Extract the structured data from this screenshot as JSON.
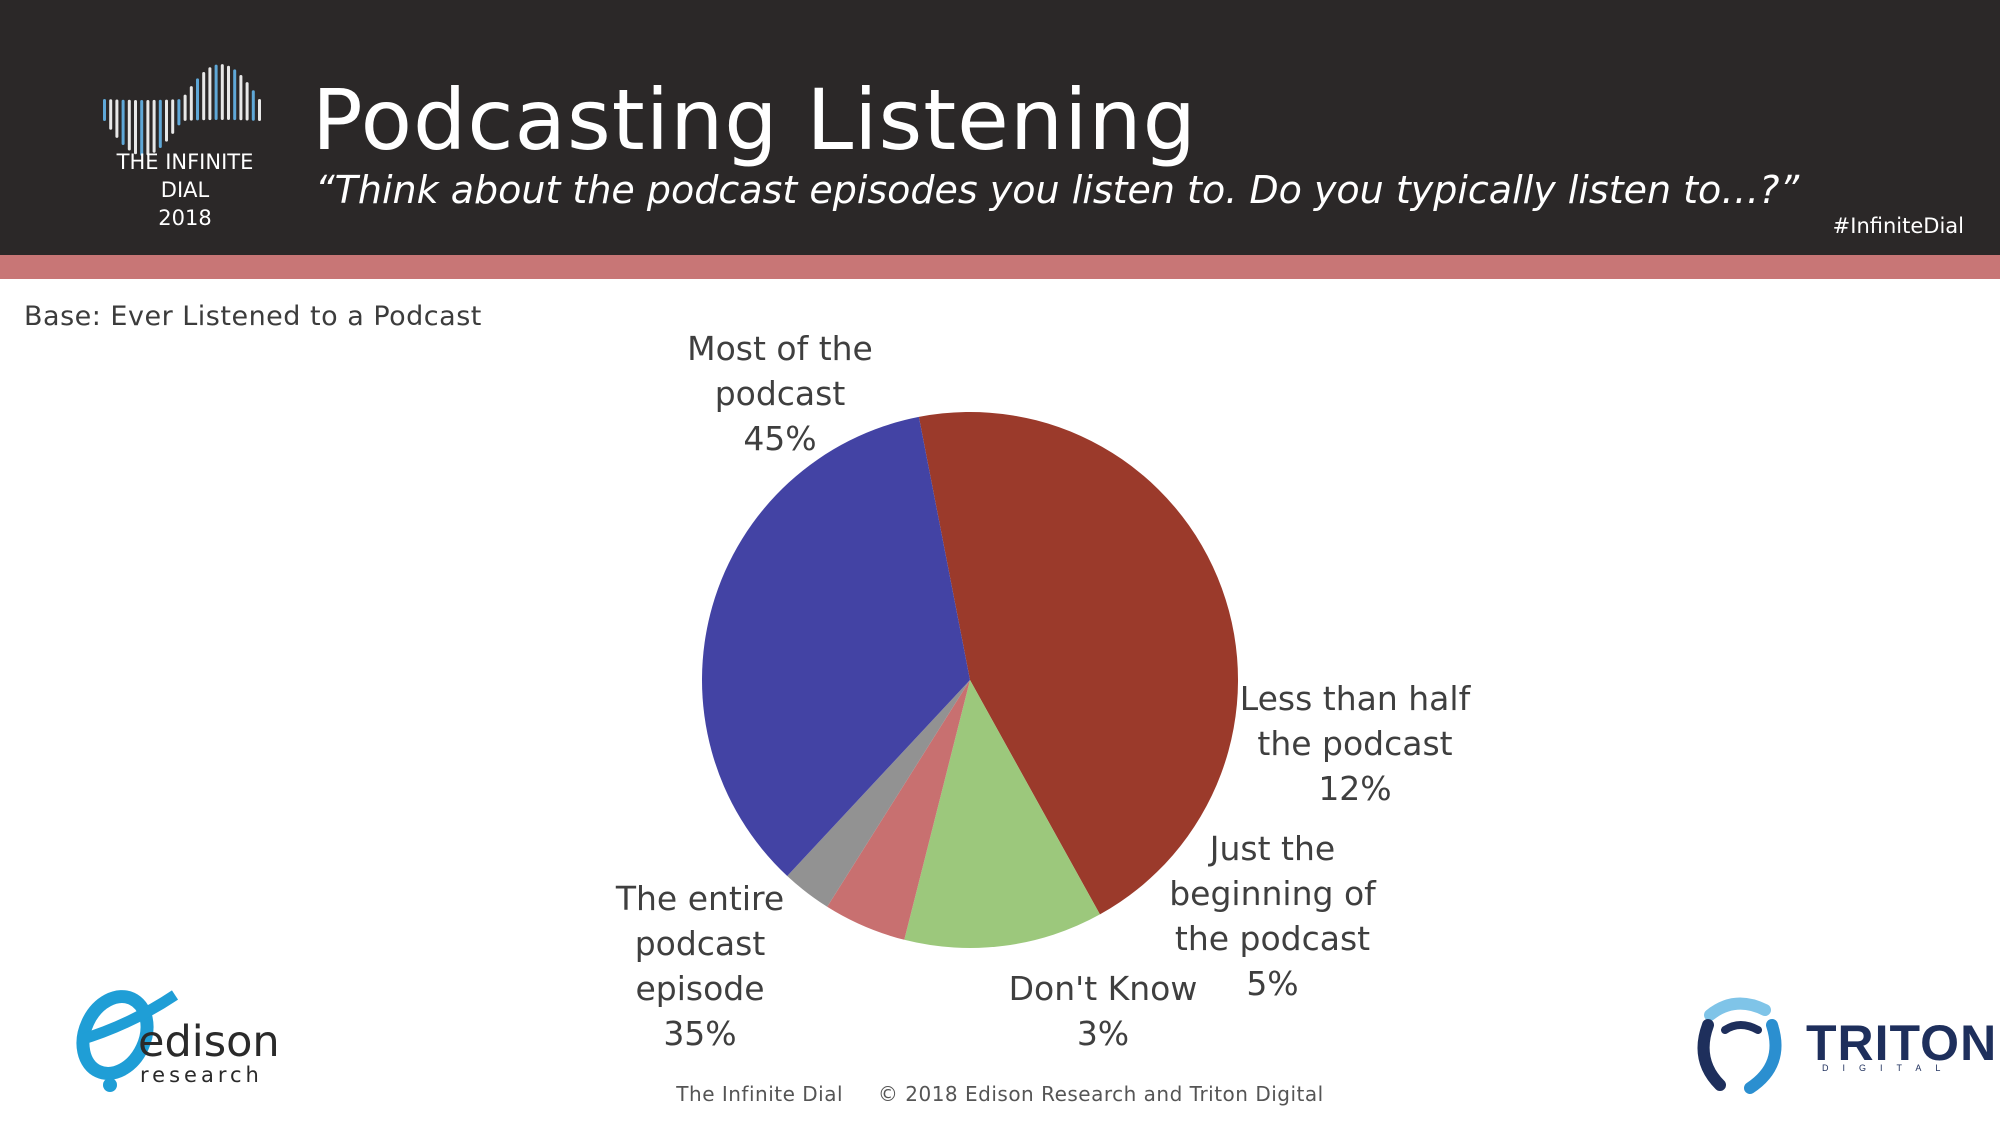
{
  "header": {
    "title": "Podcasting Listening",
    "subtitle": "“Think about the podcast episodes you listen to.  Do you typically listen to…?”",
    "hashtag": "#InfiniteDial",
    "logo_line1": "THE INFINITE DIAL",
    "logo_line2": "2018"
  },
  "base_note": "Base: Ever Listened to a Podcast",
  "footer": {
    "left": "The Infinite Dial",
    "right": "© 2018 Edison Research and Triton Digital"
  },
  "logos": {
    "edison_name": "edison",
    "edison_sub": "research",
    "triton_name": "TRITON",
    "triton_sub": "DIGITAL"
  },
  "colors": {
    "header_bg": "#2b2828",
    "accent_band": "#c87676",
    "most": "#9b3a2b",
    "less_than_half": "#9cc87c",
    "just_beginning": "#c87070",
    "dont_know": "#929292",
    "entire": "#4343a4"
  },
  "chart_data": {
    "type": "pie",
    "start_angle_deg": -101,
    "direction": "clockwise",
    "slices": [
      {
        "label_lines": [
          "Most of the",
          "podcast"
        ],
        "value": 45,
        "value_label": "45%",
        "color": "#9b3a2b"
      },
      {
        "label_lines": [
          "Less than half",
          "the podcast"
        ],
        "value": 12,
        "value_label": "12%",
        "color": "#9cc87c"
      },
      {
        "label_lines": [
          "Just the",
          "beginning of",
          "the podcast"
        ],
        "value": 5,
        "value_label": "5%",
        "color": "#c87070"
      },
      {
        "label_lines": [
          "Don't Know"
        ],
        "value": 3,
        "value_label": "3%",
        "color": "#929292"
      },
      {
        "label_lines": [
          "The entire",
          "podcast",
          "episode"
        ],
        "value": 35,
        "value_label": "35%",
        "color": "#4343a4"
      }
    ]
  }
}
